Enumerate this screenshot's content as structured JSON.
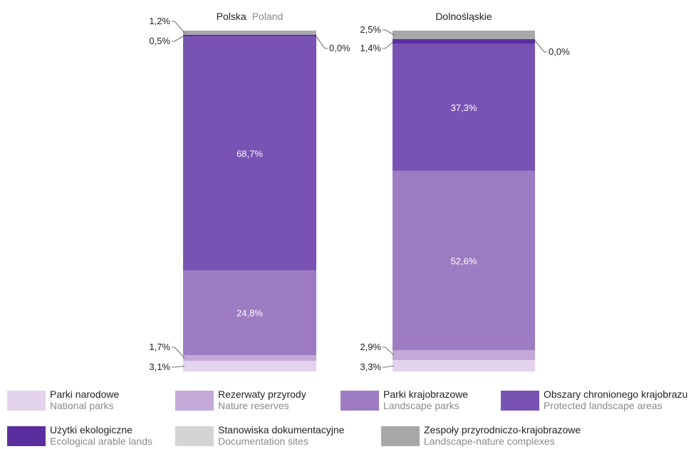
{
  "chart_data": {
    "type": "bar",
    "stacked": true,
    "normalized": true,
    "columns": [
      {
        "title": "Polska",
        "title_en": "Poland",
        "segments": [
          {
            "key": "national_parks",
            "value": 3.1,
            "label": "3,1%"
          },
          {
            "key": "nature_reserves",
            "value": 1.7,
            "label": "1,7%"
          },
          {
            "key": "landscape_parks",
            "value": 24.8,
            "label": "24,8%"
          },
          {
            "key": "protected_landscape",
            "value": 68.7,
            "label": "68,7%"
          },
          {
            "key": "ecological_lands",
            "value": 0.5,
            "label": "0,5%"
          },
          {
            "key": "documentation_sites",
            "value": 0.0,
            "label": "0,0%"
          },
          {
            "key": "landscape_complexes",
            "value": 1.2,
            "label": "1,2%"
          }
        ]
      },
      {
        "title": "Dolnośląskie",
        "title_en": "",
        "segments": [
          {
            "key": "national_parks",
            "value": 3.3,
            "label": "3,3%"
          },
          {
            "key": "nature_reserves",
            "value": 2.9,
            "label": "2,9%"
          },
          {
            "key": "landscape_parks",
            "value": 52.6,
            "label": "52,6%"
          },
          {
            "key": "protected_landscape",
            "value": 37.3,
            "label": "37,3%"
          },
          {
            "key": "ecological_lands",
            "value": 1.4,
            "label": "1,4%"
          },
          {
            "key": "documentation_sites",
            "value": 0.0,
            "label": "0,0%"
          },
          {
            "key": "landscape_complexes",
            "value": 2.5,
            "label": "2,5%"
          }
        ]
      }
    ],
    "legend": [
      {
        "key": "national_parks",
        "pl": "Parki narodowe",
        "en": "National parks",
        "color": "#e3d3ec"
      },
      {
        "key": "nature_reserves",
        "pl": "Rezerwaty przyrody",
        "en": "Nature reserves",
        "color": "#c3a8d8"
      },
      {
        "key": "landscape_parks",
        "pl": "Parki krajobrazowe",
        "en": "Landscape parks",
        "color": "#9d7cc3"
      },
      {
        "key": "protected_landscape",
        "pl": "Obszary chronionego krajobrazu",
        "en": "Protected landscape areas",
        "color": "#7853b3"
      },
      {
        "key": "ecological_lands",
        "pl": "Użytki ekologiczne",
        "en": "Ecological arable lands",
        "color": "#5b2ea0"
      },
      {
        "key": "documentation_sites",
        "pl": "Stanowiska dokumentacyjne",
        "en": "Documentation sites",
        "color": "#d4d4d4"
      },
      {
        "key": "landscape_complexes",
        "pl": "Zespoły przyrodniczo-krajobrazowe",
        "en": "Landscape-nature complexes",
        "color": "#a8a8a8"
      }
    ]
  }
}
